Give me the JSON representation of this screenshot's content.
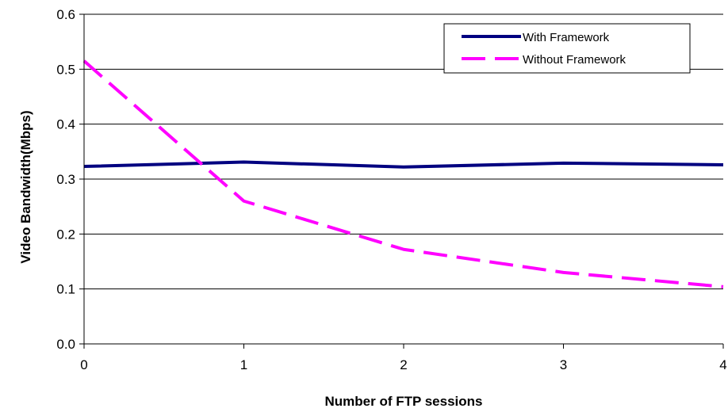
{
  "chart_data": {
    "type": "line",
    "x": [
      0,
      1,
      2,
      3,
      4
    ],
    "series": [
      {
        "name": "With Framework",
        "values": [
          0.323,
          0.331,
          0.322,
          0.329,
          0.326
        ],
        "color": "#000080",
        "style": "solid"
      },
      {
        "name": "Without Framework",
        "values": [
          0.515,
          0.26,
          0.172,
          0.13,
          0.104
        ],
        "color": "#FF00FF",
        "style": "dashed"
      }
    ],
    "xlabel": "Number of FTP sessions",
    "ylabel": "Video Bandwidth(Mbps)",
    "xlim": [
      0,
      4
    ],
    "ylim": [
      0,
      0.6
    ],
    "x_ticks": [
      "0",
      "1",
      "2",
      "3",
      "4"
    ],
    "y_ticks": [
      "0.0",
      "0.1",
      "0.2",
      "0.3",
      "0.4",
      "0.5",
      "0.6"
    ],
    "grid": "horizontal",
    "legend_position": "top-right"
  }
}
